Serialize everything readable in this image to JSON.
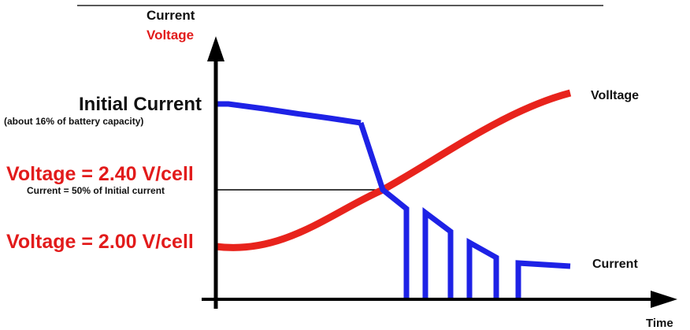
{
  "labels": {
    "y_title_current": "Current",
    "y_title_voltage": "Voltage",
    "initial_current": "Initial Current",
    "initial_current_note": "(about 16% of battery capacity)",
    "voltage_240": "Voltage = 2.40 V/cell",
    "voltage_240_note": "Current = 50% of Initial current",
    "voltage_200": "Voltage = 2.00 V/cell",
    "series_voltage": "Volltage",
    "series_current": "Current",
    "x_title": "Time"
  },
  "colors": {
    "voltage": "#e8231c",
    "current": "#1e22e6",
    "axis": "#000000",
    "voltage_text": "#e21b1b"
  }
}
